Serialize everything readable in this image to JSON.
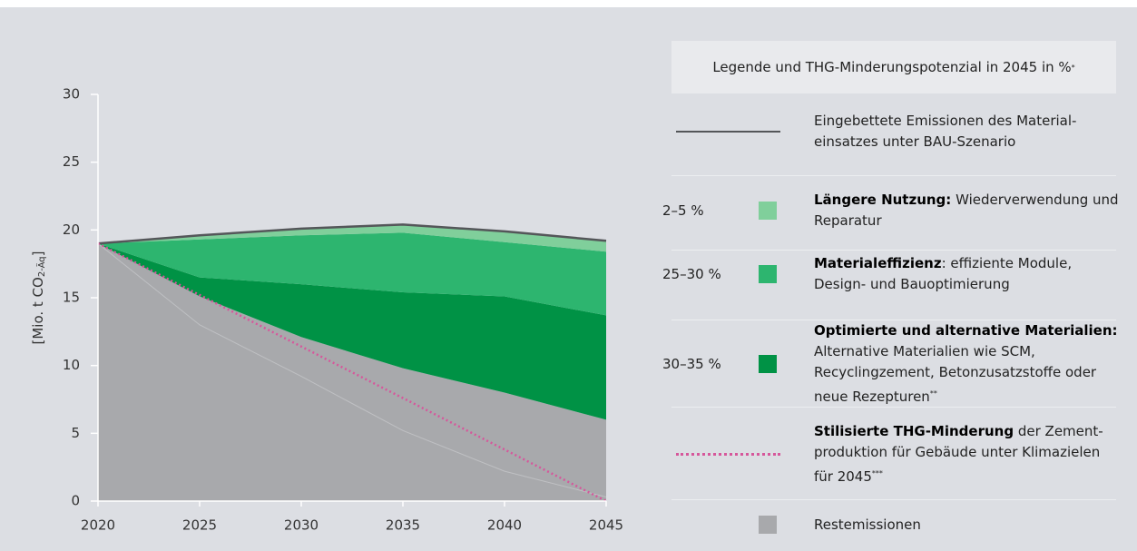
{
  "chart_data": {
    "type": "stacked_area",
    "ylabel": {
      "text": "[Mio. t CO",
      "sub": "2-Äq",
      "end": "]"
    },
    "x": [
      2020,
      2025,
      2030,
      2035,
      2040,
      2045
    ],
    "xlim": [
      2020,
      2045
    ],
    "xticks": [
      2020,
      2025,
      2030,
      2035,
      2040,
      2045
    ],
    "ylim": [
      0,
      30
    ],
    "yticks": [
      0,
      5,
      10,
      15,
      20,
      25,
      30
    ],
    "legend_title": {
      "text": "Legende und THG-Minderungspotenzial in 2045 in %",
      "mark": "*"
    },
    "series": [
      {
        "name": "Restemissionen",
        "color": "#a8a9ac",
        "values": [
          19,
          15.1,
          12.1,
          9.8,
          8.0,
          6.0
        ]
      },
      {
        "name": "Optimierte und alternative Materialien:",
        "range": "30–35 %",
        "description": "Alternative Materialien wie SCM, Recyclingzement, Betonzusatzstoffe oder neue Rezepturen",
        "note": "**",
        "color": "#009245",
        "values": [
          0,
          1.4,
          3.9,
          5.6,
          7.1,
          7.7
        ]
      },
      {
        "name": "Materialeffizienz",
        "range": "25–30 %",
        "description": ": effiziente Module, Design- und Bauoptimierung",
        "color": "#2db56f",
        "values": [
          0,
          2.8,
          3.6,
          4.4,
          4.0,
          4.7
        ]
      },
      {
        "name": "Längere Nutzung:",
        "range": "2–5 %",
        "description": "Wiederver­wendung und Reparatur",
        "color": "#80cf9b",
        "values": [
          0,
          0.3,
          0.5,
          0.6,
          0.8,
          0.8
        ]
      }
    ],
    "lines": [
      {
        "name": "Eingebettete Emissionen des Material­einsatzes unter BAU-Szenario",
        "color": "#545659",
        "style": "solid",
        "values": [
          19,
          19.6,
          20.1,
          20.4,
          19.9,
          19.2
        ]
      },
      {
        "name": "Stilisierte THG-Minderung",
        "description": "der Zement­produktion für Gebäude unter Klimazielen für 2045",
        "note": "***",
        "color": "#d6579b",
        "style": "dotted",
        "values": [
          19,
          15.2,
          11.4,
          7.6,
          3.8,
          0
        ]
      },
      {
        "color": "#bfc0c3",
        "style": "thin",
        "values": [
          19,
          13,
          9.2,
          5.2,
          2.2,
          0.3
        ]
      }
    ]
  }
}
